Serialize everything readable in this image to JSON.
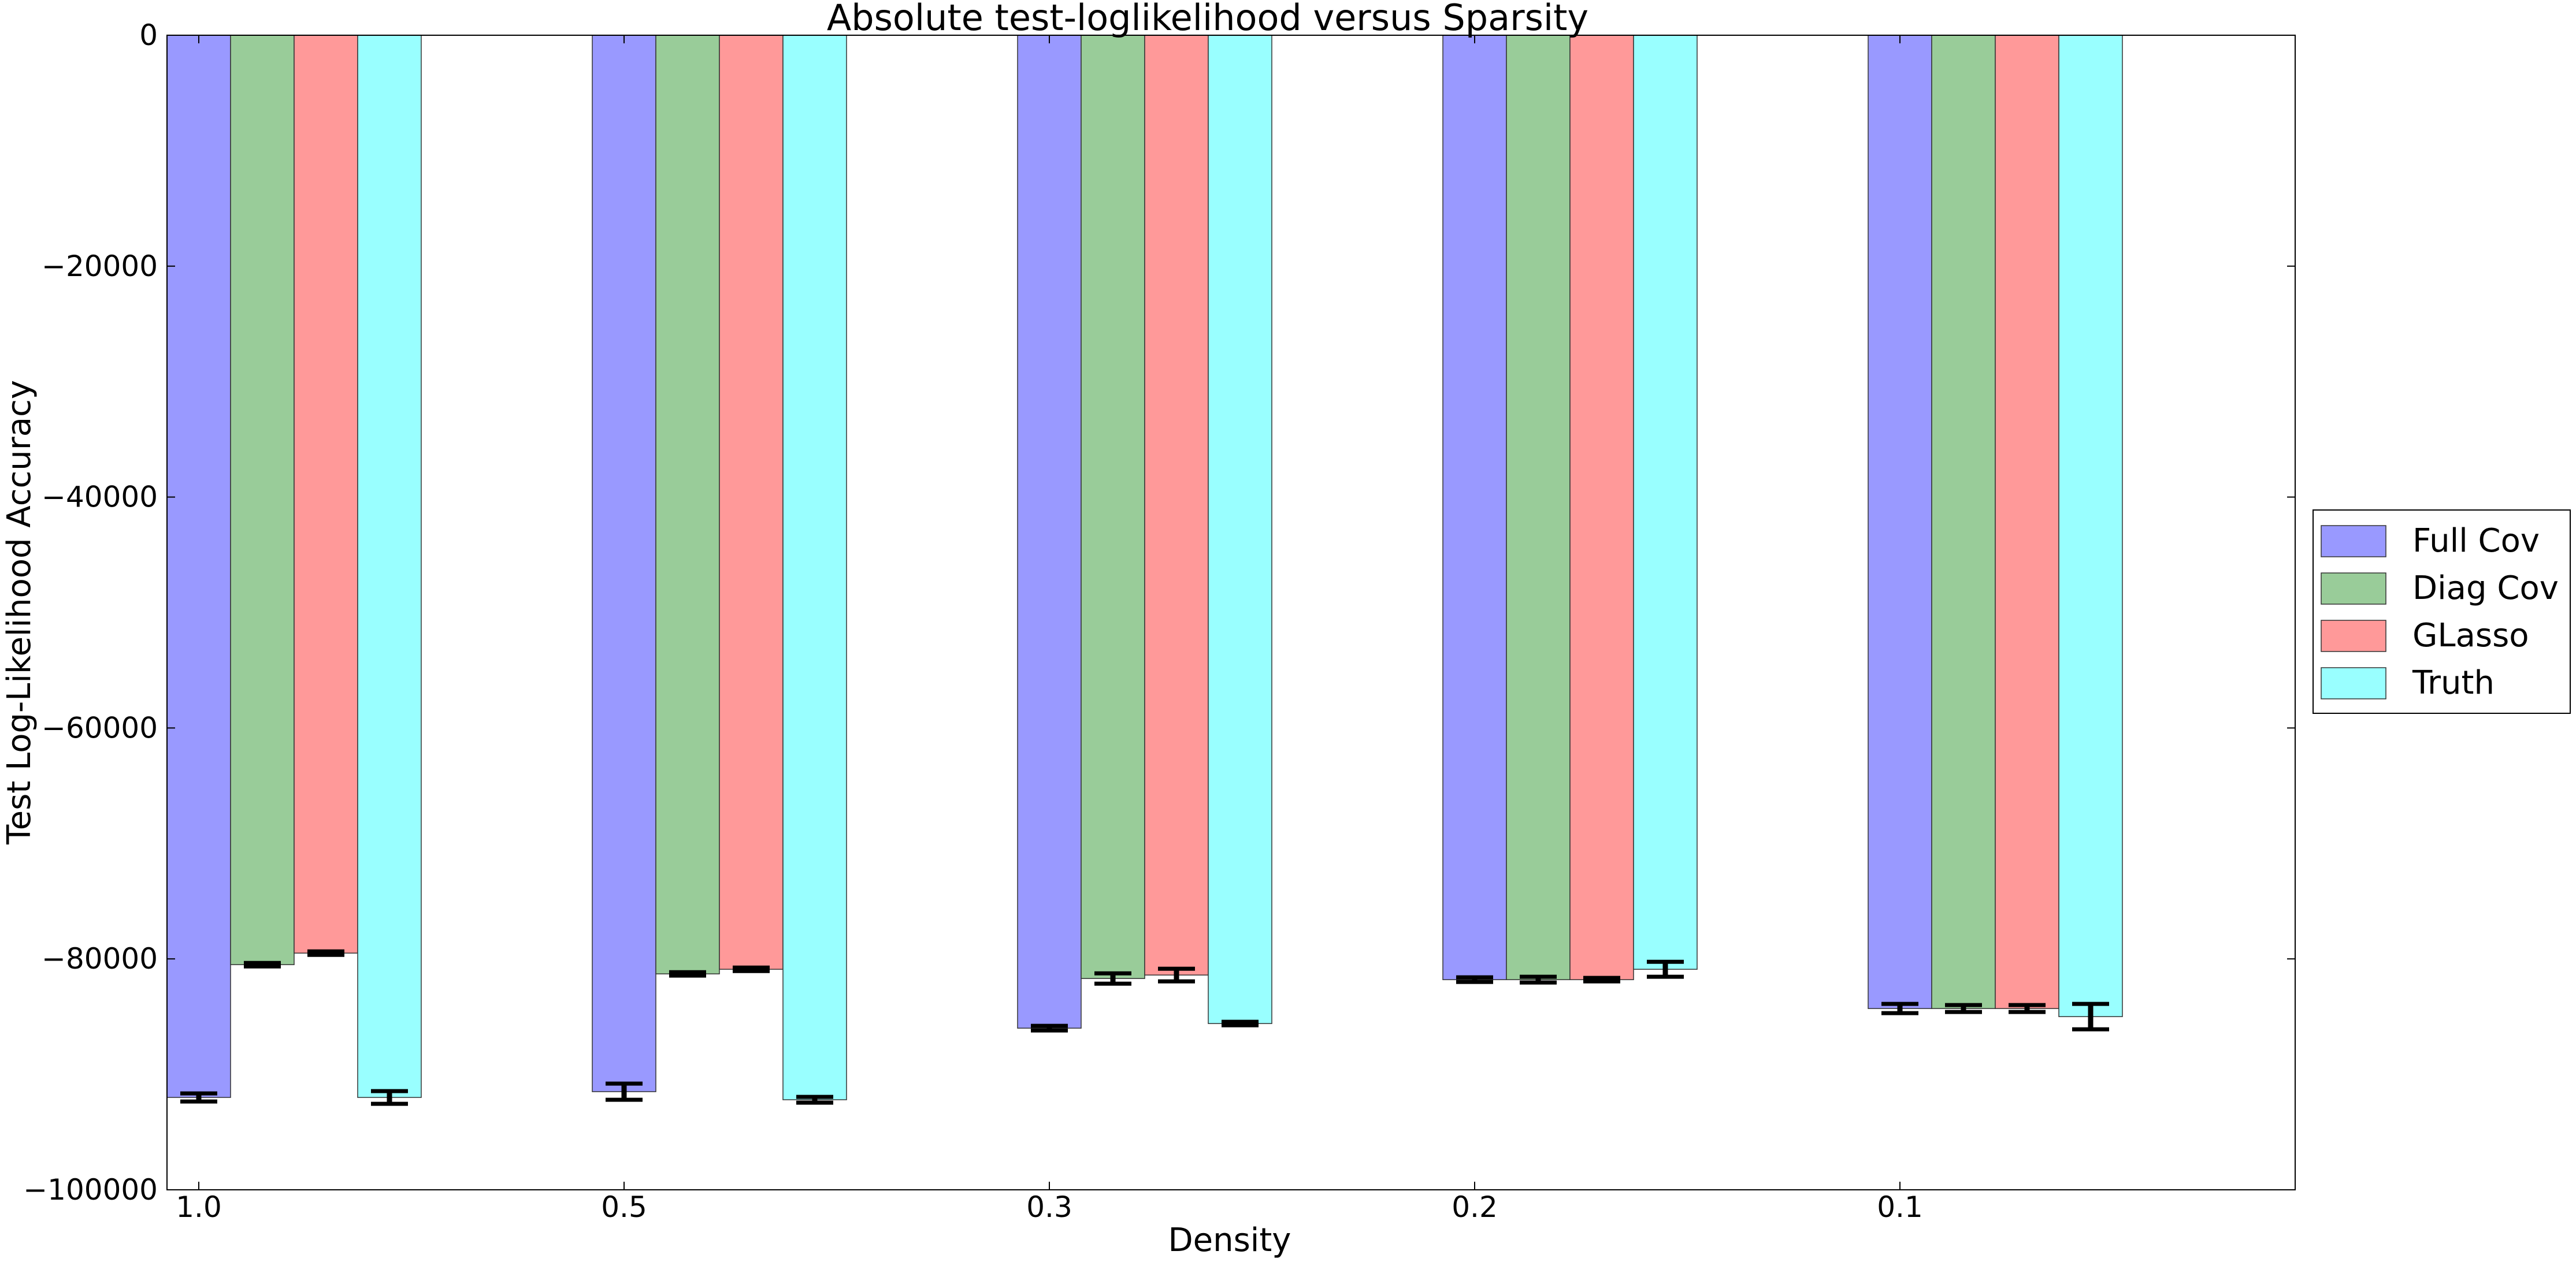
{
  "chart_data": {
    "type": "bar",
    "title": "Absolute test-loglikelihood versus Sparsity",
    "xlabel": "Density",
    "ylabel": "Test Log-Likelihood Accuracy",
    "categories": [
      "1.0",
      "0.5",
      "0.3",
      "0.2",
      "0.1"
    ],
    "ylim": [
      -100000,
      0
    ],
    "yticks": [
      0,
      -20000,
      -40000,
      -60000,
      -80000,
      -100000
    ],
    "ytick_labels": [
      "0",
      "−20000",
      "−40000",
      "−60000",
      "−80000",
      "−100000"
    ],
    "grid": false,
    "legend_position": "right, outside plot",
    "series": [
      {
        "name": "Full Cov",
        "color": "#9999ff",
        "values": [
          -92000,
          -91500,
          -86000,
          -81800,
          -84300
        ],
        "errors": [
          350,
          700,
          200,
          200,
          400
        ]
      },
      {
        "name": "Diag Cov",
        "color": "#99cc99",
        "values": [
          -80500,
          -81300,
          -81700,
          -81800,
          -84300
        ],
        "errors": [
          150,
          150,
          450,
          250,
          300
        ]
      },
      {
        "name": "GLasso",
        "color": "#ff9999",
        "values": [
          -79500,
          -80900,
          -81400,
          -81800,
          -84300
        ],
        "errors": [
          150,
          150,
          550,
          150,
          300
        ]
      },
      {
        "name": "Truth",
        "color": "#99ffff",
        "values": [
          -92000,
          -92200,
          -85600,
          -80900,
          -85000
        ],
        "errors": [
          550,
          250,
          150,
          650,
          1100
        ]
      }
    ]
  }
}
